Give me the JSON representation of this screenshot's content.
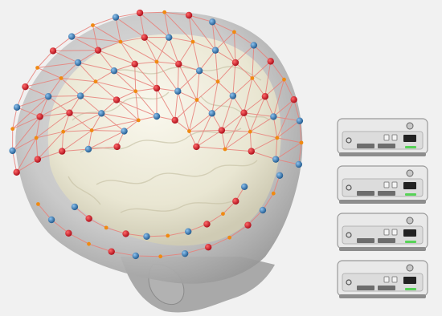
{
  "figure": {
    "elements": [
      "head-model",
      "brain-surface",
      "electrode-net",
      "amplifier-stack"
    ]
  },
  "electrodes": {
    "colors": {
      "red": "#c8102e",
      "blue": "#2f6fa8",
      "orange": "#f08a12"
    },
    "mesh_color": "#e8807a"
  },
  "head": {
    "skin_color": "#b9b9b9",
    "brain_color": "#ece9d8"
  },
  "amplifiers": {
    "count": 4,
    "body_color": "#e9e9e9",
    "status_led_color": "#57d257"
  }
}
